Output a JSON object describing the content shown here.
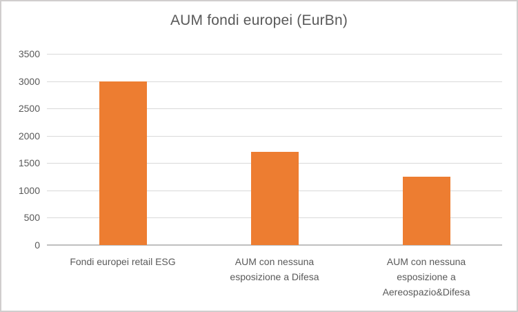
{
  "title": "AUM fondi europei (EurBn)",
  "colors": {
    "bar": "#ED7D31",
    "gridline": "#D9D9D9",
    "axis_line": "#BFBFBF",
    "text": "#595959",
    "frame_border": "#D0CECE",
    "background": "#FFFFFF"
  },
  "chart_data": {
    "type": "bar",
    "title": "AUM fondi europei (EurBn)",
    "categories": [
      "Fondi europei retail ESG",
      "AUM con nessuna esposizione a Difesa",
      "AUM con nessuna esposizione a Aereospazio&Difesa"
    ],
    "values": [
      3000,
      1700,
      1250
    ],
    "xlabel": "",
    "ylabel": "",
    "ylim": [
      0,
      3500
    ],
    "ytick_step": 500,
    "ytick_labels": [
      "0",
      "500",
      "1000",
      "1500",
      "2000",
      "2500",
      "3000",
      "3500"
    ],
    "grid": true,
    "legend": false,
    "bar_color": "#ED7D31"
  }
}
